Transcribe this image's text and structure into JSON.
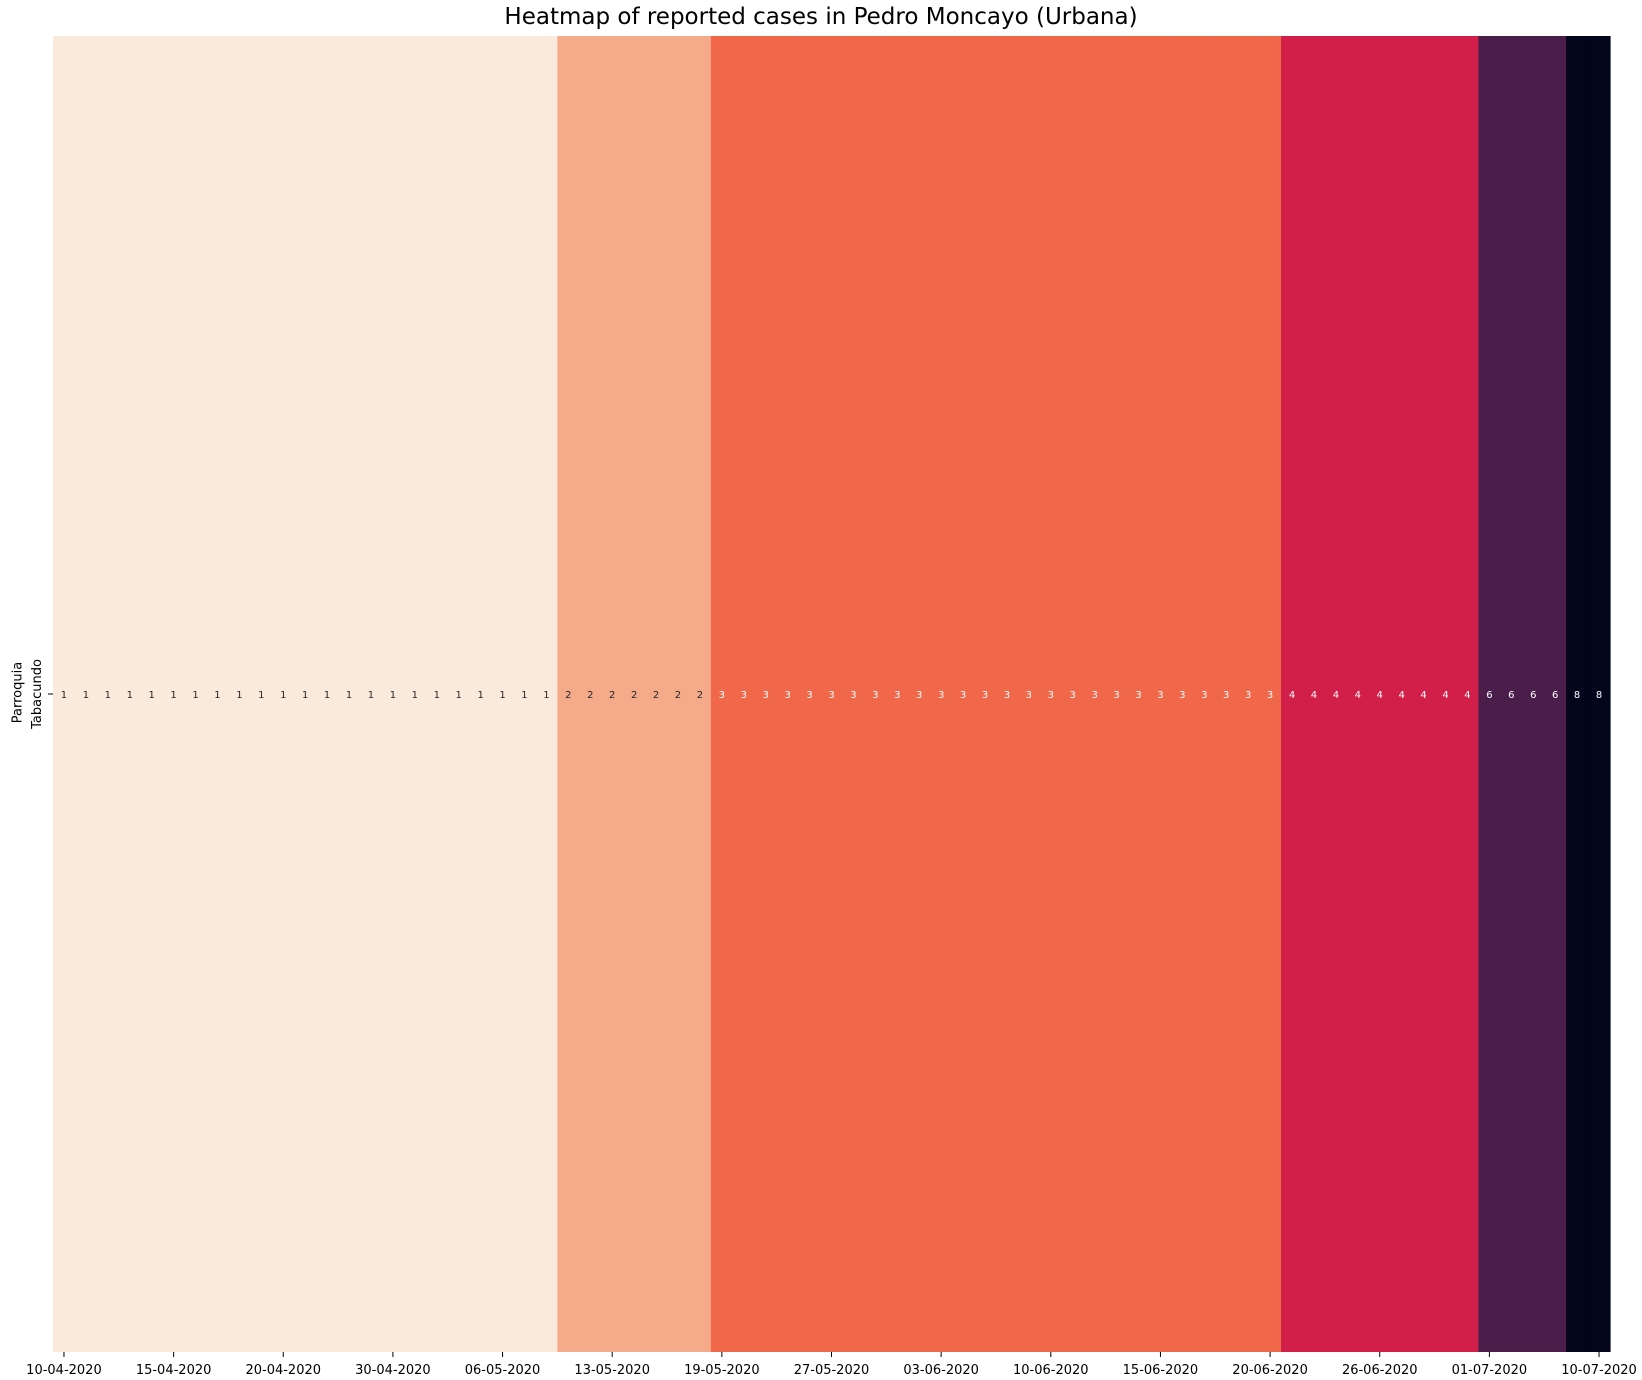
{
  "chart_data": {
    "type": "heatmap",
    "title": "Heatmap of reported cases in Pedro Moncayo (Urbana)",
    "ylabel": "Parroquia",
    "row_labels": [
      "Tabacundo"
    ],
    "x_tick_labels": [
      "10-04-2020",
      "15-04-2020",
      "20-04-2020",
      "30-04-2020",
      "06-05-2020",
      "13-05-2020",
      "19-05-2020",
      "27-05-2020",
      "03-06-2020",
      "10-06-2020",
      "15-06-2020",
      "20-06-2020",
      "26-06-2020",
      "01-07-2020",
      "10-07-2020"
    ],
    "x_tick_every": 5,
    "values": [
      [
        1,
        1,
        1,
        1,
        1,
        1,
        1,
        1,
        1,
        1,
        1,
        1,
        1,
        1,
        1,
        1,
        1,
        1,
        1,
        1,
        1,
        1,
        1,
        2,
        2,
        2,
        2,
        2,
        2,
        2,
        3,
        3,
        3,
        3,
        3,
        3,
        3,
        3,
        3,
        3,
        3,
        3,
        3,
        3,
        3,
        3,
        3,
        3,
        3,
        3,
        3,
        3,
        3,
        3,
        3,
        3,
        4,
        4,
        4,
        4,
        4,
        4,
        4,
        4,
        4,
        6,
        6,
        6,
        6,
        8,
        8
      ]
    ],
    "value_colors": {
      "1": "#faeadc",
      "2": "#f5aa89",
      "3": "#f0674a",
      "4": "#d21f4a",
      "6": "#4a1d4a",
      "8": "#03051a"
    },
    "annotation_text_colors": {
      "dark": "#262626",
      "light": "#ffffff"
    },
    "colorbar": false,
    "grid": false
  }
}
